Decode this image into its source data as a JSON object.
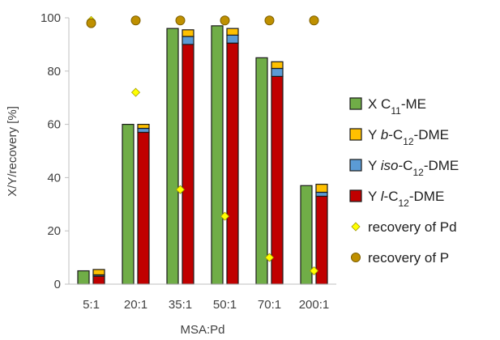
{
  "chart_data": {
    "type": "bar",
    "xlabel": "MSA:Pd",
    "ylabel": "X/Y/recovery [%]",
    "ylim": [
      0,
      100
    ],
    "yticks": [
      0,
      20,
      40,
      60,
      80,
      100
    ],
    "grid": false,
    "legend_position": "right",
    "categories": [
      "5:1",
      "20:1",
      "35:1",
      "50:1",
      "70:1",
      "200:1"
    ],
    "bars": [
      {
        "key": "X",
        "name_parts": [
          [
            "X C",
            ""
          ],
          [
            "11",
            "sub"
          ],
          [
            "-ME",
            ""
          ]
        ],
        "color": "#70ad47",
        "values": [
          5,
          60,
          96,
          97,
          85,
          37
        ]
      }
    ],
    "stacked": {
      "order_bottom_to_top": [
        "l",
        "iso",
        "b"
      ],
      "series": [
        {
          "key": "l",
          "name_parts": [
            [
              "Y ",
              ""
            ],
            [
              "l",
              "italic"
            ],
            [
              "-C",
              ""
            ],
            [
              "12",
              "sub"
            ],
            [
              "-DME",
              ""
            ]
          ],
          "color": "#c00000",
          "values": [
            3,
            57,
            90,
            90.5,
            78,
            33
          ]
        },
        {
          "key": "iso",
          "name_parts": [
            [
              "Y ",
              ""
            ],
            [
              "iso",
              "italic"
            ],
            [
              "-C",
              ""
            ],
            [
              "12",
              "sub"
            ],
            [
              "-DME",
              ""
            ]
          ],
          "color": "#5b9bd5",
          "values": [
            0.5,
            1.5,
            3,
            3,
            3,
            1.5
          ]
        },
        {
          "key": "b",
          "name_parts": [
            [
              "Y ",
              ""
            ],
            [
              "b",
              "italic"
            ],
            [
              "-C",
              ""
            ],
            [
              "12",
              "sub"
            ],
            [
              "-DME",
              ""
            ]
          ],
          "color": "#ffc000",
          "values": [
            2,
            1.5,
            2.5,
            2.5,
            2.5,
            3
          ]
        }
      ]
    },
    "scatter": [
      {
        "key": "Pd",
        "name_parts": [
          [
            "recovery of Pd",
            ""
          ]
        ],
        "marker": "diamond",
        "color": "#ffff00",
        "stroke": "#a09a00",
        "values": [
          99,
          72,
          35.5,
          25.5,
          10,
          5
        ]
      },
      {
        "key": "P",
        "name_parts": [
          [
            "recovery of P",
            ""
          ]
        ],
        "marker": "circle",
        "color": "#bf9000",
        "stroke": "#7f6000",
        "values": [
          98,
          99,
          99,
          99,
          99,
          99
        ]
      }
    ],
    "legend_order": [
      "X",
      "b",
      "iso",
      "l",
      "Pd",
      "P"
    ]
  }
}
